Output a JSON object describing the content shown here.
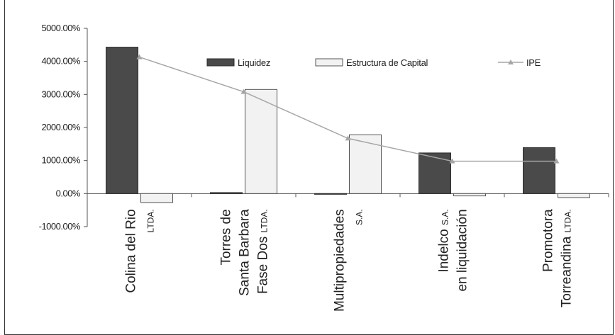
{
  "chart_data": {
    "type": "bar",
    "categories": [
      {
        "lines": [
          [
            {
              "t": "Colina del Rio",
              "small": false
            }
          ],
          [
            {
              "t": "LTDA.",
              "small": true
            }
          ]
        ]
      },
      {
        "lines": [
          [
            {
              "t": "Torres de",
              "small": false
            }
          ],
          [
            {
              "t": "Santa Barbara",
              "small": false
            }
          ],
          [
            {
              "t": "Fase Dos ",
              "small": false
            },
            {
              "t": "LTDA.",
              "small": true
            }
          ]
        ]
      },
      {
        "lines": [
          [
            {
              "t": "Multipropiedades",
              "small": false
            }
          ],
          [
            {
              "t": "S.A.",
              "small": true
            }
          ]
        ]
      },
      {
        "lines": [
          [
            {
              "t": "Indelco ",
              "small": false
            },
            {
              "t": "S.A.",
              "small": true
            }
          ],
          [
            {
              "t": "en liquidación",
              "small": false
            }
          ]
        ]
      },
      {
        "lines": [
          [
            {
              "t": "Promotora",
              "small": false
            }
          ],
          [
            {
              "t": "Torreandina ",
              "small": false
            },
            {
              "t": "LTDA.",
              "small": true
            }
          ]
        ]
      }
    ],
    "series": [
      {
        "name": "Liquidez",
        "kind": "bar",
        "color": "#4a4a4a",
        "values": [
          4430,
          30,
          0,
          1230,
          1390
        ]
      },
      {
        "name": "Estructura de Capital",
        "kind": "bar",
        "color": "#f2f2f2",
        "values": [
          -270,
          3150,
          1780,
          -70,
          -120
        ]
      },
      {
        "name": "IPE",
        "kind": "line",
        "color": "#a6a6a6",
        "values": [
          4130,
          3080,
          1670,
          980,
          980
        ]
      }
    ],
    "ylim": [
      -1000,
      5000
    ],
    "yticks": [
      "5000.00%",
      "4000.00%",
      "3000.00%",
      "2000.00%",
      "1000.00%",
      "0.00%",
      "-1000.00%"
    ],
    "ytick_values": [
      5000,
      4000,
      3000,
      2000,
      1000,
      0,
      -1000
    ],
    "legend_position": "top-right",
    "grid": false
  }
}
